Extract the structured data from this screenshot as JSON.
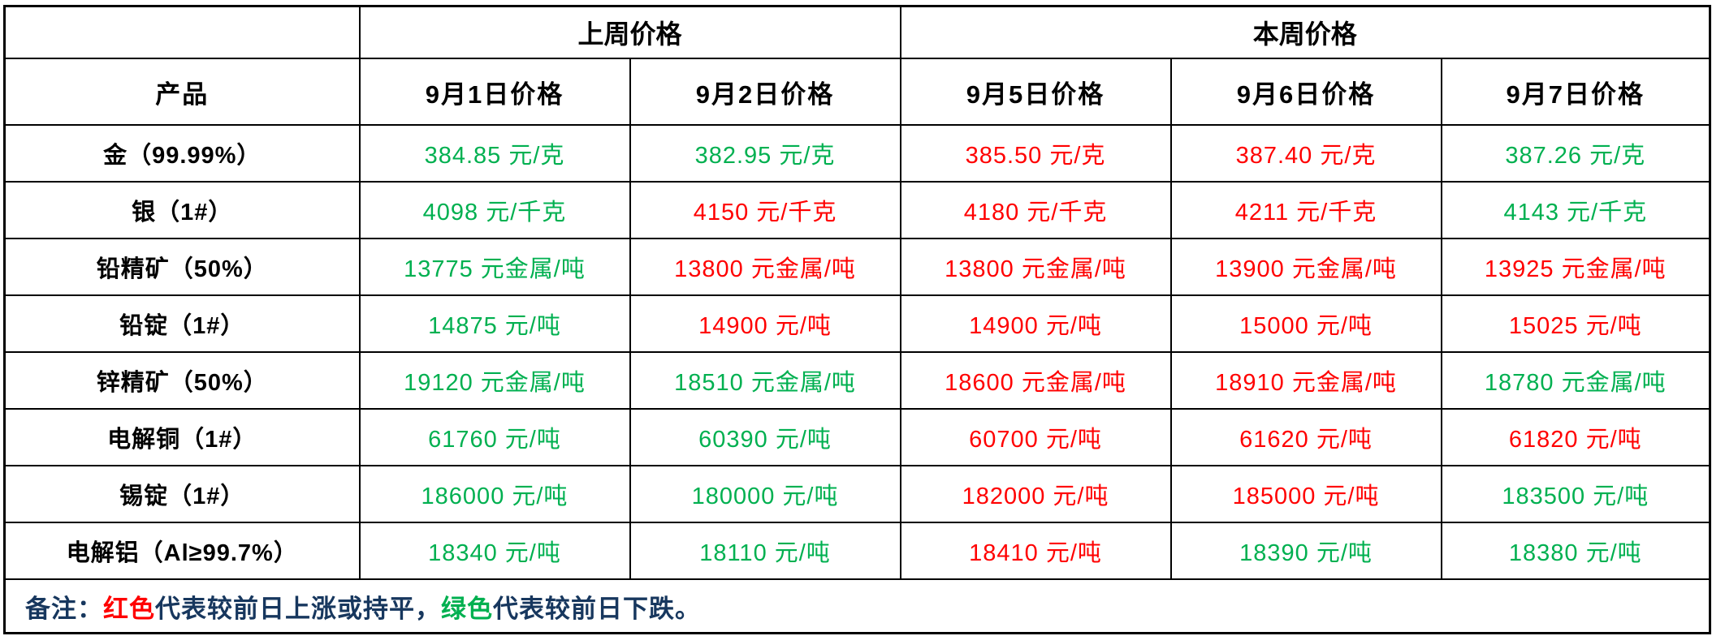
{
  "table": {
    "group_headers": [
      "上周价格",
      "本周价格"
    ],
    "product_header": "产品",
    "col_headers": [
      "9月1日价格",
      "9月2日价格",
      "9月5日价格",
      "9月6日价格",
      "9月7日价格"
    ],
    "rows": [
      {
        "product": "金（99.99%）",
        "prices": [
          {
            "text": "384.85 元/克",
            "color": "green"
          },
          {
            "text": "382.95 元/克",
            "color": "green"
          },
          {
            "text": "385.50 元/克",
            "color": "red"
          },
          {
            "text": "387.40 元/克",
            "color": "red"
          },
          {
            "text": "387.26 元/克",
            "color": "green"
          }
        ]
      },
      {
        "product": "银（1#）",
        "prices": [
          {
            "text": "4098 元/千克",
            "color": "green"
          },
          {
            "text": "4150 元/千克",
            "color": "red"
          },
          {
            "text": "4180 元/千克",
            "color": "red"
          },
          {
            "text": "4211 元/千克",
            "color": "red"
          },
          {
            "text": "4143 元/千克",
            "color": "green"
          }
        ]
      },
      {
        "product": "铅精矿（50%）",
        "prices": [
          {
            "text": "13775 元金属/吨",
            "color": "green"
          },
          {
            "text": "13800 元金属/吨",
            "color": "red"
          },
          {
            "text": "13800 元金属/吨",
            "color": "red"
          },
          {
            "text": "13900 元金属/吨",
            "color": "red"
          },
          {
            "text": "13925 元金属/吨",
            "color": "red"
          }
        ]
      },
      {
        "product": "铅锭（1#）",
        "prices": [
          {
            "text": "14875 元/吨",
            "color": "green"
          },
          {
            "text": "14900 元/吨",
            "color": "red"
          },
          {
            "text": "14900 元/吨",
            "color": "red"
          },
          {
            "text": "15000 元/吨",
            "color": "red"
          },
          {
            "text": "15025 元/吨",
            "color": "red"
          }
        ]
      },
      {
        "product": "锌精矿（50%）",
        "prices": [
          {
            "text": "19120 元金属/吨",
            "color": "green"
          },
          {
            "text": "18510 元金属/吨",
            "color": "green"
          },
          {
            "text": "18600 元金属/吨",
            "color": "red"
          },
          {
            "text": "18910 元金属/吨",
            "color": "red"
          },
          {
            "text": "18780 元金属/吨",
            "color": "green"
          }
        ]
      },
      {
        "product": "电解铜（1#）",
        "prices": [
          {
            "text": "61760 元/吨",
            "color": "green"
          },
          {
            "text": "60390 元/吨",
            "color": "green"
          },
          {
            "text": "60700 元/吨",
            "color": "red"
          },
          {
            "text": "61620 元/吨",
            "color": "red"
          },
          {
            "text": "61820 元/吨",
            "color": "red"
          }
        ]
      },
      {
        "product": "锡锭（1#）",
        "prices": [
          {
            "text": "186000 元/吨",
            "color": "green"
          },
          {
            "text": "180000 元/吨",
            "color": "green"
          },
          {
            "text": "182000 元/吨",
            "color": "red"
          },
          {
            "text": "185000 元/吨",
            "color": "red"
          },
          {
            "text": "183500 元/吨",
            "color": "green"
          }
        ]
      },
      {
        "product": "电解铝（Al≥99.7%）",
        "prices": [
          {
            "text": "18340 元/吨",
            "color": "green"
          },
          {
            "text": "18110 元/吨",
            "color": "green"
          },
          {
            "text": "18410 元/吨",
            "color": "red"
          },
          {
            "text": "18390 元/吨",
            "color": "green"
          },
          {
            "text": "18380 元/吨",
            "color": "green"
          }
        ]
      }
    ]
  },
  "note": {
    "segments": [
      {
        "text": "备注：",
        "color": "navy"
      },
      {
        "text": "红色",
        "color": "red"
      },
      {
        "text": "代表较前日上涨或持平，",
        "color": "navy"
      },
      {
        "text": "绿色",
        "color": "green"
      },
      {
        "text": "代表较前日下跌。",
        "color": "navy"
      }
    ]
  },
  "colors": {
    "red": "#FF0000",
    "green": "#00B050",
    "navy": "#17375E",
    "border": "#000000",
    "background": "#FFFFFF"
  }
}
